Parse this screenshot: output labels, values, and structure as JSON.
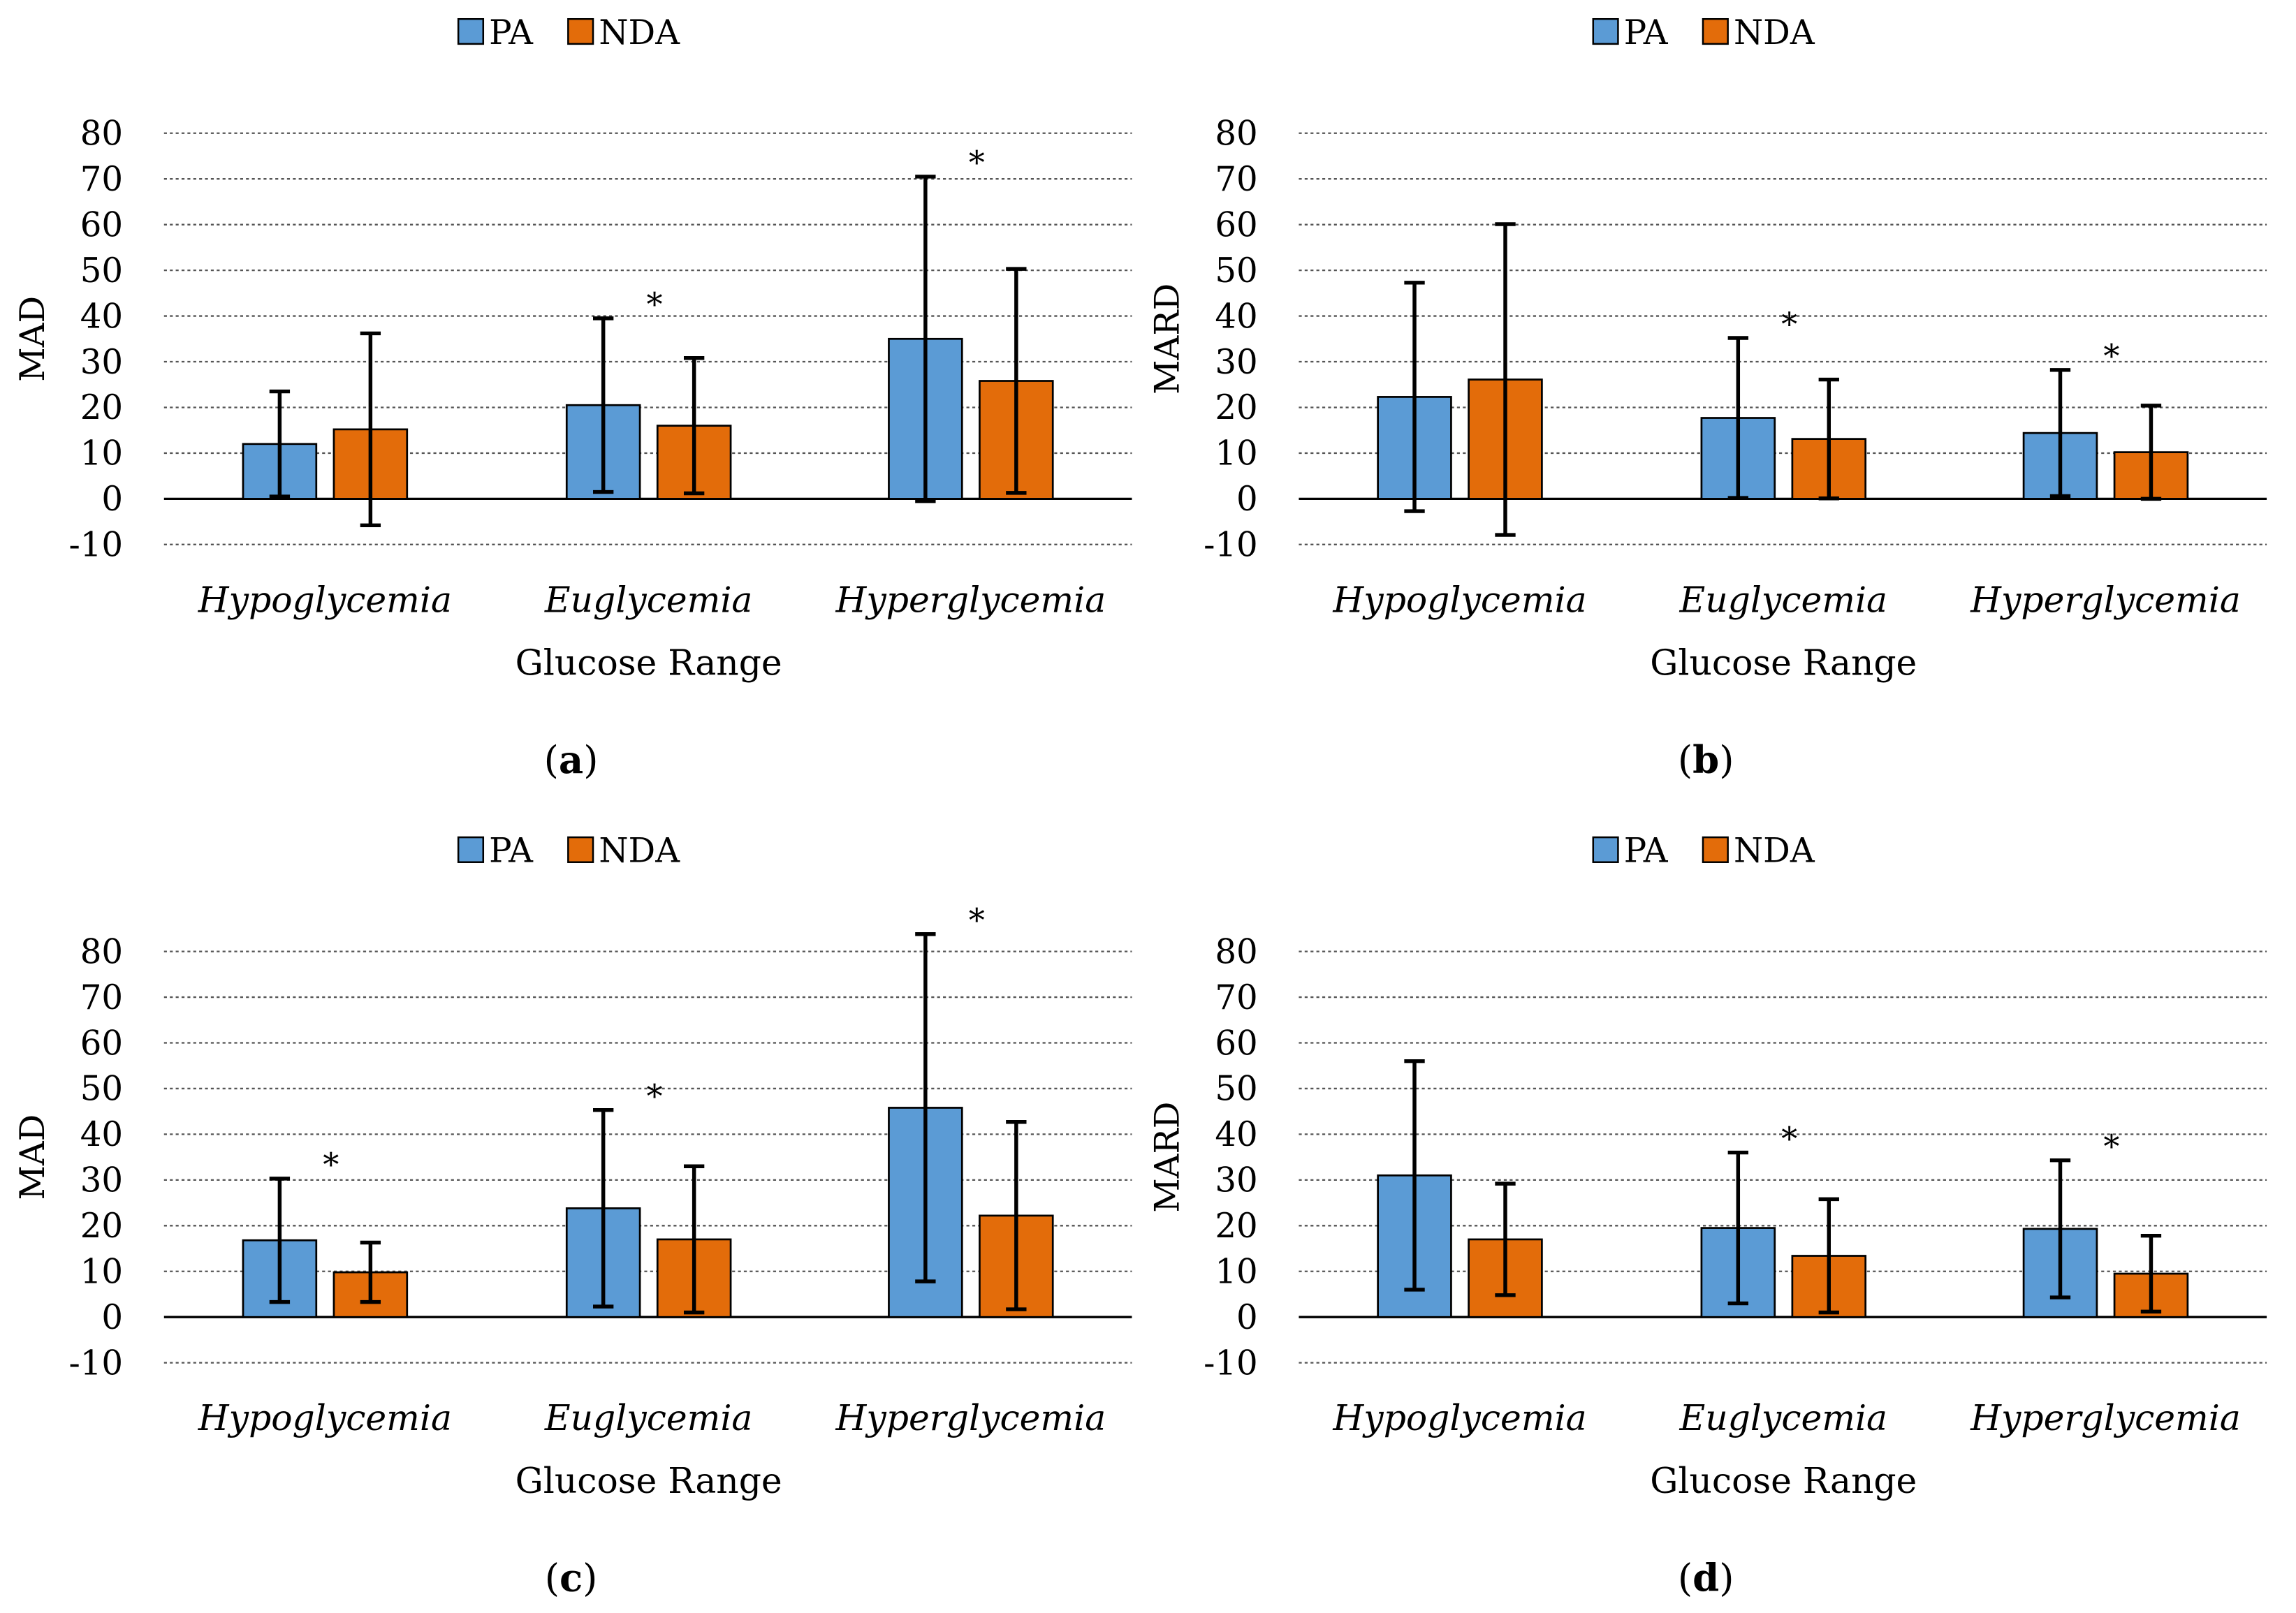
{
  "colors": {
    "pa": "#5B9BD5",
    "nda": "#E36C0A",
    "bar_stroke": "#000000",
    "grid": "#555555",
    "axis": "#000000",
    "text": "#000000"
  },
  "chart_data": [
    {
      "panel_label": "a",
      "type": "bar",
      "title": "",
      "xlabel": "Glucose Range",
      "ylabel": "MAD",
      "ylim": [
        -10,
        80
      ],
      "yticks": [
        "-10",
        "0",
        "10",
        "20",
        "30",
        "40",
        "50",
        "60",
        "70",
        "80"
      ],
      "grid": true,
      "legend": {
        "position": "top",
        "entries": [
          "PA",
          "NDA"
        ]
      },
      "categories": [
        "Hypoglycemia",
        "Euglycemia",
        "Hyperglycemia"
      ],
      "series": [
        {
          "name": "PA",
          "values": [
            12,
            20.5,
            35
          ],
          "errors": [
            11.5,
            19,
            35.5
          ]
        },
        {
          "name": "NDA",
          "values": [
            15.2,
            16,
            25.8
          ],
          "errors": [
            21,
            14.8,
            24.5
          ]
        }
      ],
      "significance": [
        "",
        "*",
        "*"
      ]
    },
    {
      "panel_label": "b",
      "type": "bar",
      "title": "",
      "xlabel": "Glucose Range",
      "ylabel": "MARD",
      "ylim": [
        -10,
        80
      ],
      "yticks": [
        "-10",
        "0",
        "10",
        "20",
        "30",
        "40",
        "50",
        "60",
        "70",
        "80"
      ],
      "grid": true,
      "legend": {
        "position": "top",
        "entries": [
          "PA",
          "NDA"
        ]
      },
      "categories": [
        "Hypoglycemia",
        "Euglycemia",
        "Hyperglycemia"
      ],
      "series": [
        {
          "name": "PA",
          "values": [
            22.3,
            17.7,
            14.4
          ],
          "errors": [
            25,
            17.5,
            13.8
          ]
        },
        {
          "name": "NDA",
          "values": [
            26.1,
            13.1,
            10.2
          ],
          "errors": [
            34,
            13,
            10.2
          ]
        }
      ],
      "significance": [
        "",
        "*",
        "*"
      ]
    },
    {
      "panel_label": "c",
      "type": "bar",
      "title": "",
      "xlabel": "Glucose Range",
      "ylabel": "MAD",
      "ylim": [
        -10,
        80
      ],
      "yticks": [
        "-10",
        "0",
        "10",
        "20",
        "30",
        "40",
        "50",
        "60",
        "70",
        "80"
      ],
      "grid": true,
      "legend": {
        "position": "top",
        "entries": [
          "PA",
          "NDA"
        ]
      },
      "categories": [
        "Hypoglycemia",
        "Euglycemia",
        "Hyperglycemia"
      ],
      "series": [
        {
          "name": "PA",
          "values": [
            16.8,
            23.8,
            45.8
          ],
          "errors": [
            13.5,
            21.5,
            38
          ]
        },
        {
          "name": "NDA",
          "values": [
            9.8,
            17,
            22.2
          ],
          "errors": [
            6.5,
            16,
            20.5
          ]
        }
      ],
      "significance": [
        "*",
        "*",
        "*"
      ]
    },
    {
      "panel_label": "d",
      "type": "bar",
      "title": "",
      "xlabel": "Glucose Range",
      "ylabel": "MARD",
      "ylim": [
        -10,
        80
      ],
      "yticks": [
        "-10",
        "0",
        "10",
        "20",
        "30",
        "40",
        "50",
        "60",
        "70",
        "80"
      ],
      "grid": true,
      "legend": {
        "position": "top",
        "entries": [
          "PA",
          "NDA"
        ]
      },
      "categories": [
        "Hypoglycemia",
        "Euglycemia",
        "Hyperglycemia"
      ],
      "series": [
        {
          "name": "PA",
          "values": [
            31,
            19.5,
            19.3
          ],
          "errors": [
            25,
            16.5,
            15
          ]
        },
        {
          "name": "NDA",
          "values": [
            17,
            13.4,
            9.5
          ],
          "errors": [
            12.2,
            12.4,
            8.3
          ]
        }
      ],
      "significance": [
        "",
        "*",
        "*"
      ]
    }
  ]
}
